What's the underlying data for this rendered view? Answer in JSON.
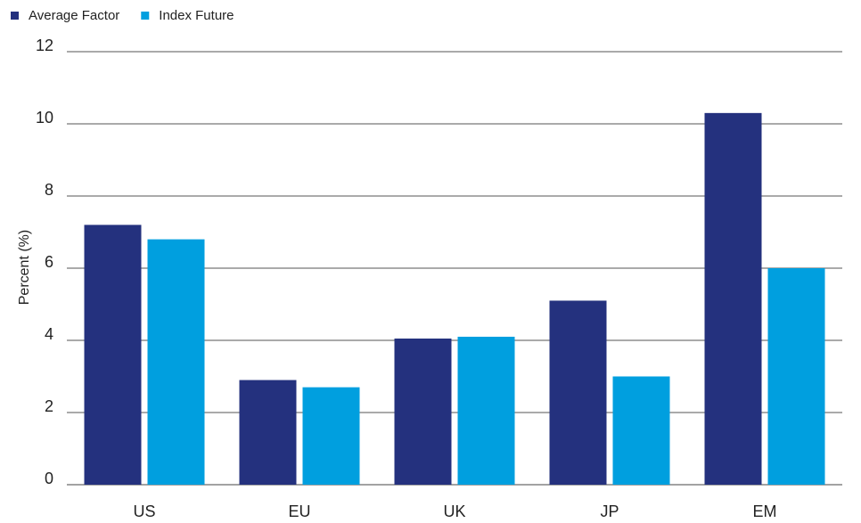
{
  "chart_data": {
    "type": "bar",
    "y_label": "Percent (%)",
    "categories": [
      "US",
      "EU",
      "UK",
      "JP",
      "EM"
    ],
    "series": [
      {
        "name": "Average Factor",
        "color": "#24317e",
        "values": [
          7.2,
          2.9,
          4.05,
          5.1,
          10.3
        ]
      },
      {
        "name": "Index Future",
        "color": "#009fdf",
        "values": [
          6.8,
          2.7,
          4.1,
          3.0,
          6.0
        ]
      }
    ],
    "ylim": [
      0,
      12
    ],
    "yticks": [
      0,
      2,
      4,
      6,
      8,
      10,
      12
    ],
    "grid": true,
    "legend": "top-left"
  }
}
